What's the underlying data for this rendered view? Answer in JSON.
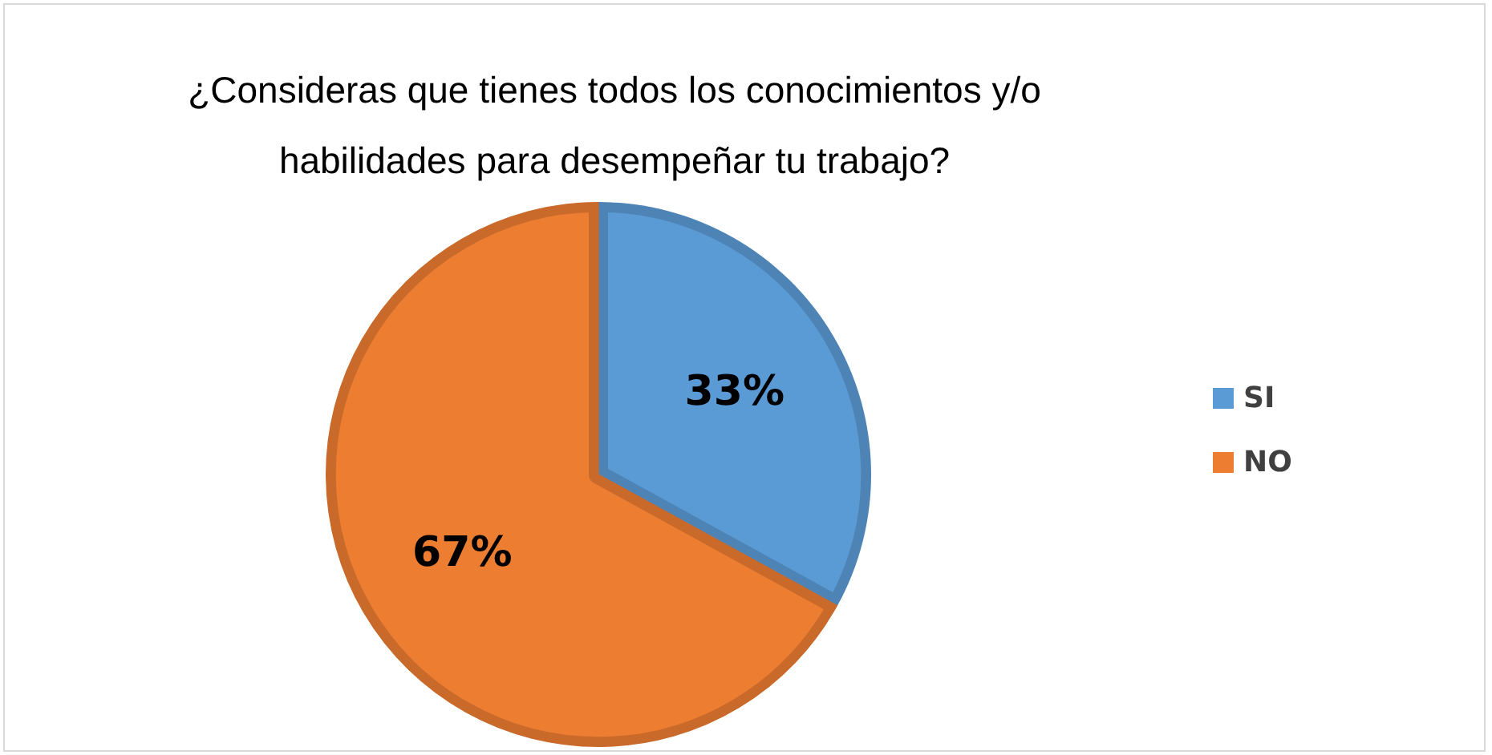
{
  "chart_data": {
    "type": "pie",
    "title": "¿Consideras que tienes todos los conocimientos y/o habilidades para desempeñar tu trabajo?",
    "categories": [
      "SI",
      "NO"
    ],
    "values": [
      33,
      67
    ],
    "colors": [
      "#5b9bd5",
      "#ed7d31"
    ],
    "value_labels": [
      "33%",
      "67%"
    ],
    "legend": "right"
  }
}
